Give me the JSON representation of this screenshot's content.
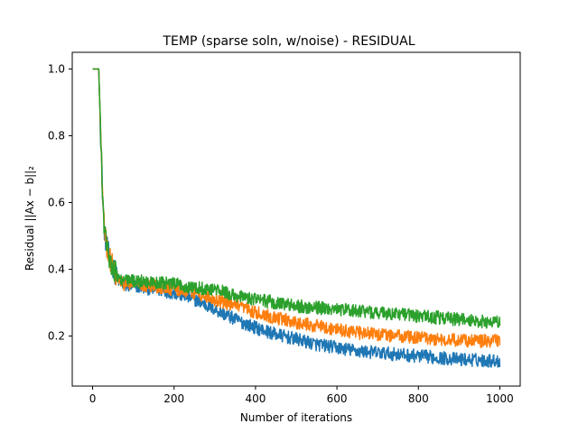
{
  "chart_data": {
    "type": "line",
    "title": "TEMP (sparse soln, w/noise) - RESIDUAL",
    "xlabel": "Number of iterations",
    "ylabel": "Residual ||Ax − b||₂",
    "xlim": [
      -50,
      1050
    ],
    "ylim": [
      0.05,
      1.05
    ],
    "xticks": [
      0,
      200,
      400,
      600,
      800,
      1000
    ],
    "xtick_labels": [
      "0",
      "200",
      "400",
      "600",
      "800",
      "1000"
    ],
    "yticks": [
      0.2,
      0.4,
      0.6,
      0.8,
      1.0
    ],
    "ytick_labels": [
      "0.2",
      "0.4",
      "0.6",
      "0.8",
      "1.0"
    ],
    "grid": false,
    "legend": "none",
    "x": [
      0,
      15,
      20,
      25,
      30,
      35,
      40,
      45,
      50,
      60,
      70,
      80,
      100,
      150,
      200,
      250,
      300,
      350,
      400,
      450,
      500,
      550,
      600,
      650,
      700,
      750,
      800,
      850,
      900,
      950,
      1000
    ],
    "series": [
      {
        "color": "#1f77b4",
        "values": [
          1.0,
          1.0,
          0.8,
          0.6,
          0.5,
          0.47,
          0.44,
          0.42,
          0.41,
          0.37,
          0.36,
          0.35,
          0.35,
          0.34,
          0.33,
          0.31,
          0.28,
          0.25,
          0.225,
          0.205,
          0.19,
          0.175,
          0.165,
          0.155,
          0.15,
          0.145,
          0.14,
          0.135,
          0.13,
          0.128,
          0.125
        ]
      },
      {
        "color": "#ff7f0e",
        "values": [
          1.0,
          1.0,
          0.8,
          0.6,
          0.5,
          0.47,
          0.44,
          0.42,
          0.41,
          0.37,
          0.36,
          0.355,
          0.355,
          0.35,
          0.34,
          0.33,
          0.31,
          0.29,
          0.27,
          0.255,
          0.24,
          0.23,
          0.22,
          0.21,
          0.205,
          0.2,
          0.195,
          0.19,
          0.188,
          0.185,
          0.185
        ]
      },
      {
        "color": "#2ca02c",
        "values": [
          1.0,
          1.0,
          0.8,
          0.6,
          0.5,
          0.47,
          0.44,
          0.42,
          0.41,
          0.38,
          0.37,
          0.365,
          0.365,
          0.36,
          0.355,
          0.345,
          0.34,
          0.32,
          0.31,
          0.3,
          0.29,
          0.285,
          0.28,
          0.275,
          0.27,
          0.265,
          0.26,
          0.255,
          0.25,
          0.245,
          0.24
        ]
      }
    ]
  }
}
